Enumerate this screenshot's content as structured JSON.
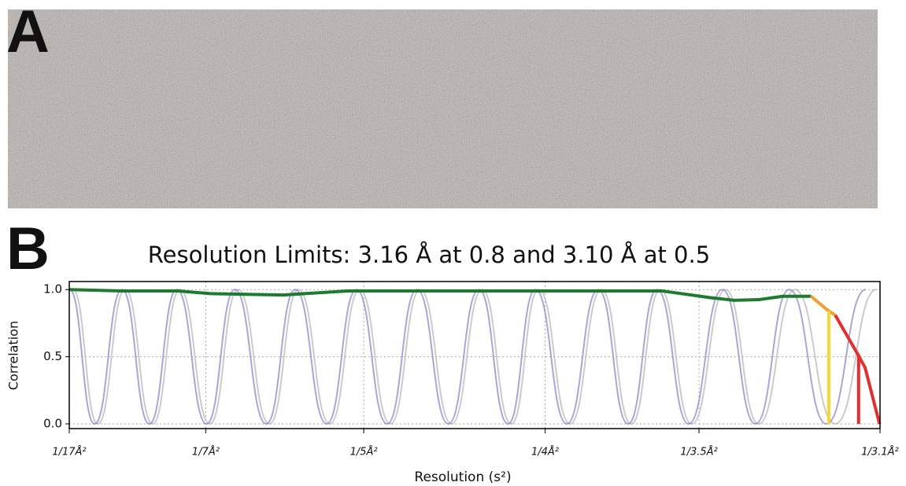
{
  "panel_a_label": "A",
  "panel_b_label": "B",
  "chart_data": {
    "type": "line",
    "title": "Resolution Limits: 3.16 Å at 0.8 and 3.10 Å at 0.5",
    "xlabel": "Resolution (s²)",
    "ylabel": "Correlation",
    "xlim": [
      0.00346,
      0.10406
    ],
    "ylim": [
      -0.035,
      1.06
    ],
    "xticks": [
      {
        "value": 0.00346,
        "label": "1/17Å²"
      },
      {
        "value": 0.0204,
        "label": "1/7Å²"
      },
      {
        "value": 0.04,
        "label": "1/5Å²"
      },
      {
        "value": 0.0625,
        "label": "1/4Å²"
      },
      {
        "value": 0.0816,
        "label": "1/3.5Å²"
      },
      {
        "value": 0.10406,
        "label": "1/3.1Å²"
      }
    ],
    "yticks": [
      {
        "value": 0,
        "label": "0.0"
      },
      {
        "value": 0.5,
        "label": "0.5"
      },
      {
        "value": 1,
        "label": "1.0"
      }
    ],
    "grid": true,
    "series": [
      {
        "color": "#b9b9bd",
        "smooth": true,
        "x": [
          0.0039,
          0.007,
          0.0104,
          0.0138,
          0.0172,
          0.0209,
          0.0244,
          0.0283,
          0.0319,
          0.0358,
          0.0395,
          0.0433,
          0.047,
          0.0509,
          0.0547,
          0.0583,
          0.0617,
          0.0656,
          0.0695,
          0.0732,
          0.0768,
          0.0807,
          0.0849,
          0.089,
          0.0935,
          0.0985,
          0.1036
        ],
        "values": [
          1,
          0,
          1,
          0,
          1,
          0,
          1,
          0,
          1,
          0,
          1,
          0,
          1,
          0,
          1,
          0,
          1,
          0,
          1,
          0,
          1,
          0,
          1,
          0,
          1,
          0,
          1
        ]
      },
      {
        "color": "#8c88c9",
        "smooth": true,
        "x": [
          0.0035,
          0.0066,
          0.01,
          0.0134,
          0.0168,
          0.0205,
          0.024,
          0.0279,
          0.0315,
          0.0354,
          0.0391,
          0.0429,
          0.0466,
          0.0505,
          0.0543,
          0.0579,
          0.0613,
          0.0652,
          0.0691,
          0.0728,
          0.0764,
          0.0803,
          0.0845,
          0.0886,
          0.0928,
          0.0974,
          0.1023
        ],
        "values": [
          1,
          0,
          1,
          0,
          1,
          0,
          1,
          0,
          1,
          0,
          1,
          0,
          1,
          0,
          1,
          0,
          1,
          0,
          1,
          0,
          1,
          0,
          1,
          0,
          1,
          0,
          1
        ]
      },
      {
        "color": "#1e7a2e",
        "smooth": false,
        "x": [
          0.0035,
          0.01,
          0.017,
          0.021,
          0.03,
          0.038,
          0.07,
          0.077,
          0.083,
          0.086,
          0.089,
          0.092,
          0.0955
        ],
        "values": [
          1.0,
          0.99,
          0.99,
          0.97,
          0.96,
          0.99,
          0.99,
          0.99,
          0.94,
          0.92,
          0.925,
          0.95,
          0.95
        ]
      },
      {
        "color": "#f0a030",
        "smooth": false,
        "x": [
          0.0955,
          0.0977,
          0.0985
        ],
        "values": [
          0.95,
          0.84,
          0.81
        ]
      },
      {
        "color": "#e03030",
        "smooth": false,
        "x": [
          0.0985,
          0.101,
          0.1022,
          0.104
        ],
        "values": [
          0.81,
          0.55,
          0.42,
          0.0
        ]
      }
    ],
    "markers": [
      {
        "x": 0.0977,
        "value": 0.84,
        "color": "#f5d830"
      },
      {
        "x": 0.1014,
        "value": 0.52,
        "color": "#e03030"
      }
    ]
  }
}
